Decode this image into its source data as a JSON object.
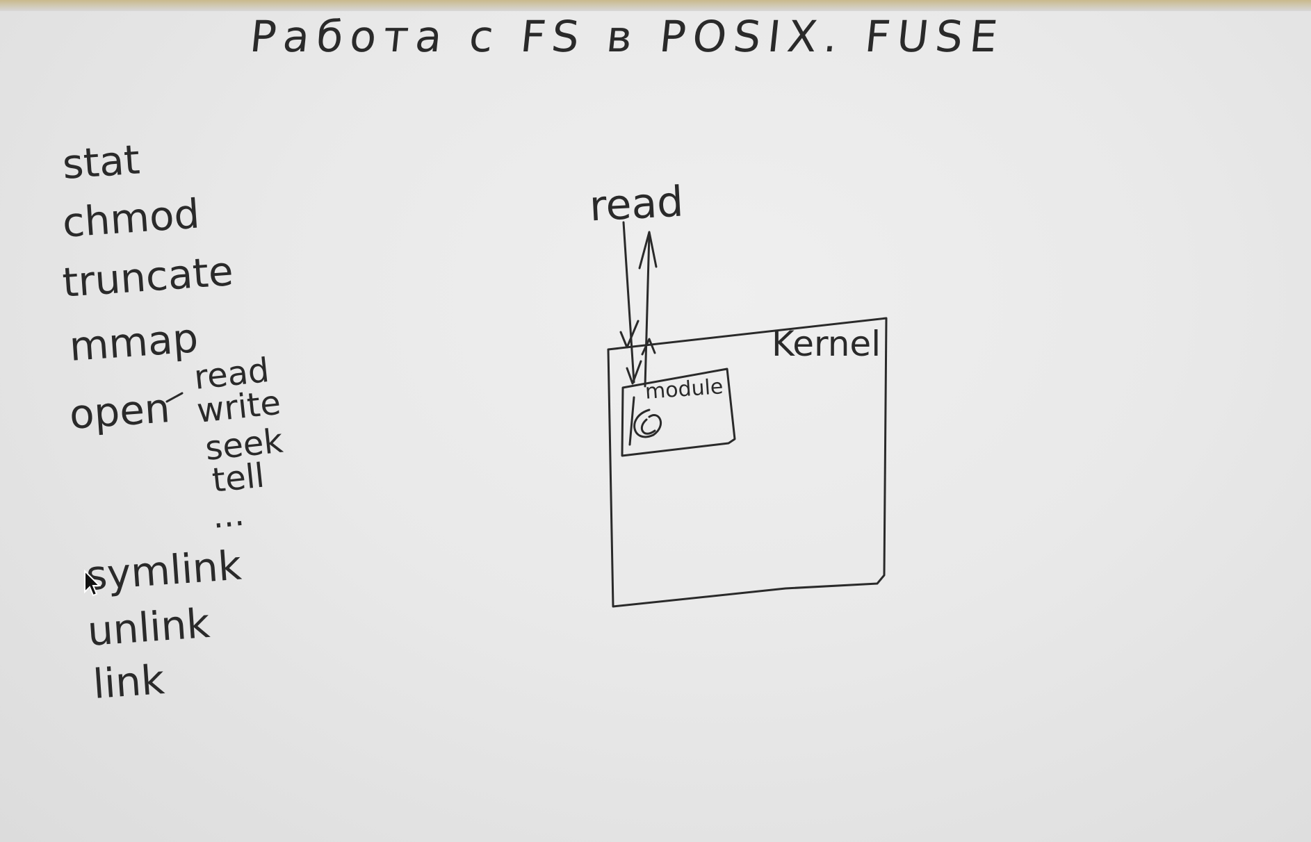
{
  "title": "Работа с FS в POSIX.  FUSE",
  "functions": [
    "stat",
    "chmod",
    "truncate",
    "mmap",
    "open"
  ],
  "dash": "-",
  "open_ops": [
    "read",
    "write",
    "seek",
    "tell",
    "..."
  ],
  "link_functions": [
    "symlink",
    "unlink",
    "link"
  ],
  "diagram": {
    "read_label": "read",
    "kernel_label": "Kernel",
    "module_label": "module"
  },
  "colors": {
    "ink": "#2a2a2a",
    "board": "#e9e9e9"
  },
  "icons": [
    "arrow-cursor-icon"
  ]
}
